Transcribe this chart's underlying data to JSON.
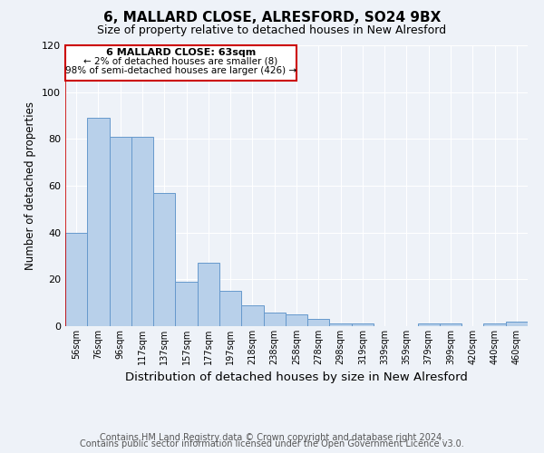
{
  "title": "6, MALLARD CLOSE, ALRESFORD, SO24 9BX",
  "subtitle": "Size of property relative to detached houses in New Alresford",
  "xlabel": "Distribution of detached houses by size in New Alresford",
  "ylabel": "Number of detached properties",
  "bar_labels": [
    "56sqm",
    "76sqm",
    "96sqm",
    "117sqm",
    "137sqm",
    "157sqm",
    "177sqm",
    "197sqm",
    "218sqm",
    "238sqm",
    "258sqm",
    "278sqm",
    "298sqm",
    "319sqm",
    "339sqm",
    "359sqm",
    "379sqm",
    "399sqm",
    "420sqm",
    "440sqm",
    "460sqm"
  ],
  "bar_values": [
    40,
    89,
    81,
    81,
    57,
    19,
    27,
    15,
    9,
    6,
    5,
    3,
    1,
    1,
    0,
    0,
    1,
    1,
    0,
    1,
    2
  ],
  "bar_color": "#b8d0ea",
  "bar_edge_color": "#6699cc",
  "marker_line_color": "#cc0000",
  "ylim": [
    0,
    120
  ],
  "yticks": [
    0,
    20,
    40,
    60,
    80,
    100,
    120
  ],
  "annotation_title": "6 MALLARD CLOSE: 63sqm",
  "annotation_line1": "← 2% of detached houses are smaller (8)",
  "annotation_line2": "98% of semi-detached houses are larger (426) →",
  "annotation_box_color": "#ffffff",
  "annotation_box_edge": "#cc0000",
  "footer_line1": "Contains HM Land Registry data © Crown copyright and database right 2024.",
  "footer_line2": "Contains public sector information licensed under the Open Government Licence v3.0.",
  "background_color": "#eef2f8",
  "grid_color": "#ffffff",
  "title_fontsize": 11,
  "subtitle_fontsize": 9,
  "xlabel_fontsize": 9.5,
  "ylabel_fontsize": 8.5,
  "footer_fontsize": 7,
  "annotation_title_fontsize": 8,
  "annotation_text_fontsize": 7.5
}
